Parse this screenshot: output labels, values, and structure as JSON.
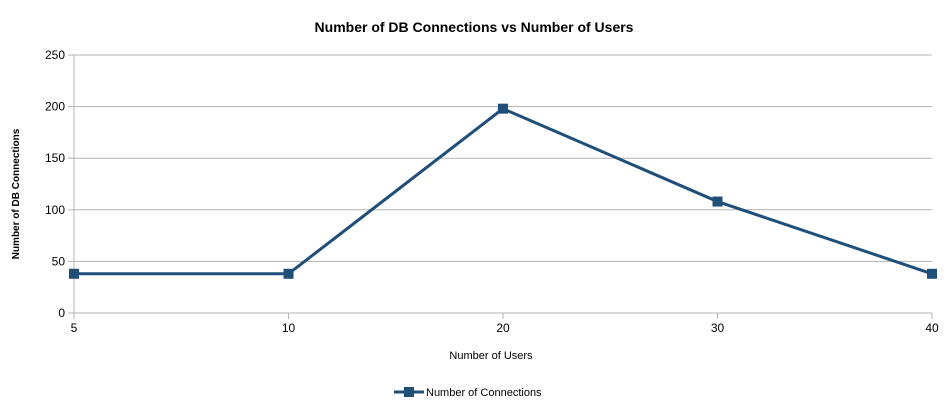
{
  "chart_data": {
    "type": "line",
    "title": "Number of DB Connections vs Number of Users",
    "xlabel": "Number of Users",
    "ylabel": "Number of DB Connections",
    "categories": [
      "5",
      "10",
      "20",
      "30",
      "40"
    ],
    "series": [
      {
        "name": "Number of Connections",
        "values": [
          38,
          38,
          198,
          108,
          38
        ]
      }
    ],
    "ylim": [
      0,
      250
    ],
    "yticks": [
      "0",
      "50",
      "100",
      "150",
      "200",
      "250"
    ],
    "grid": true,
    "legend_position": "bottom",
    "colors": {
      "series": "#1f4e79",
      "grid": "#b3b3b3",
      "axis": "#b3b3b3"
    }
  }
}
